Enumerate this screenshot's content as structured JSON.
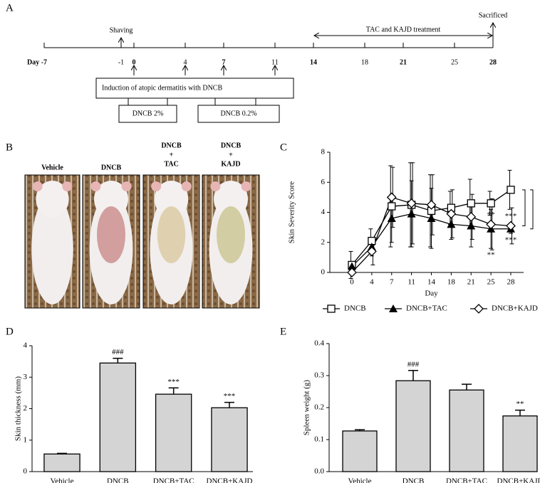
{
  "timeline": {
    "panel": "A",
    "ticks": [
      {
        "value": -7,
        "label": "Day -7"
      },
      -1,
      0,
      4,
      7,
      11,
      14,
      18,
      21,
      25,
      28
    ],
    "bold_ticks": [
      -7,
      0,
      7,
      14,
      21,
      28
    ],
    "events": [
      {
        "text": "Shaving",
        "day": -1
      },
      {
        "text": "Sacrificed",
        "day": 28
      }
    ],
    "treatment": {
      "text": "TAC and  KAJD treatment",
      "from": 14,
      "to": 28
    },
    "induction": {
      "text": "Induction of atopic dermatitis with DNCB",
      "days": [
        0,
        4,
        7,
        11
      ]
    },
    "doses": [
      "DNCB 2%",
      "DNCB 0.2%"
    ]
  },
  "photos": {
    "panel": "B",
    "labels": [
      [
        "Vehicle"
      ],
      [
        "DNCB"
      ],
      [
        "DNCB",
        "+",
        "TAC"
      ],
      [
        "DNCB",
        "+",
        "KAJD"
      ]
    ]
  },
  "chart_data": [
    {
      "type": "line",
      "panel": "C",
      "xlabel": "Day",
      "ylabel": "Skin Severity Score",
      "categories": [
        "0",
        "4",
        "7",
        "11",
        "14",
        "18",
        "21",
        "25",
        "28"
      ],
      "ylim": [
        0,
        8
      ],
      "yticks": [
        0,
        2,
        4,
        6,
        8
      ],
      "series": [
        {
          "name": "DNCB",
          "color": "#000000",
          "marker": "square",
          "values": [
            0.5,
            2.1,
            4.4,
            4.5,
            4.1,
            4.3,
            4.6,
            4.6,
            5.5
          ],
          "errors": [
            0.9,
            0.8,
            2.7,
            2.8,
            2.4,
            1.1,
            1.6,
            0.8,
            1.3
          ]
        },
        {
          "name": "DNCB+TAC",
          "color": "#000000",
          "marker": "triangle",
          "values": [
            0.4,
            1.7,
            3.6,
            3.9,
            3.6,
            3.2,
            3.1,
            2.9,
            2.9
          ],
          "errors": [
            0.3,
            0.6,
            1.6,
            2.2,
            2.0,
            1.0,
            1.4,
            1.3,
            0.3
          ],
          "significance": [
            null,
            null,
            null,
            null,
            null,
            null,
            null,
            "**",
            "***"
          ],
          "significance_side": "below"
        },
        {
          "name": "DNCB+KAJD",
          "color": "#000000",
          "marker": "diamond",
          "values": [
            0,
            1.4,
            5.0,
            4.6,
            4.5,
            3.9,
            3.7,
            3.2,
            3.1
          ],
          "errors": [
            0,
            0.9,
            2.0,
            2.7,
            2.0,
            1.6,
            1.5,
            1.7,
            1.2
          ],
          "significance": [
            null,
            null,
            null,
            null,
            null,
            null,
            null,
            "**",
            "***"
          ],
          "significance_side": "above"
        }
      ]
    },
    {
      "type": "bar",
      "panel": "D",
      "ylabel": "Skin thickness  (mm)",
      "color": "#d4d4d4",
      "categories": [
        "Vehicle",
        "DNCB",
        "DNCB+TAC",
        "DNCB+KAJD"
      ],
      "values": [
        0.56,
        3.45,
        2.46,
        2.03
      ],
      "errors": [
        0.02,
        0.15,
        0.2,
        0.17
      ],
      "significance": [
        null,
        "###",
        "***",
        "***"
      ],
      "ylim": [
        0,
        4
      ],
      "yticks": [
        0,
        1,
        2,
        3,
        4
      ]
    },
    {
      "type": "bar",
      "panel": "E",
      "ylabel": "Spleen weight (g)",
      "color": "#d4d4d4",
      "categories": [
        "Vehicle",
        "DNCB",
        "DNCB+TAC",
        "DNCB+KAJD"
      ],
      "values": [
        0.127,
        0.284,
        0.255,
        0.174
      ],
      "errors": [
        0.004,
        0.032,
        0.018,
        0.018
      ],
      "significance": [
        null,
        "###",
        null,
        "**"
      ],
      "ylim": [
        0,
        0.4
      ],
      "yticks": [
        {
          "value": 0,
          "label": "0.0"
        },
        0.1,
        0.2,
        0.3,
        0.4
      ]
    }
  ]
}
